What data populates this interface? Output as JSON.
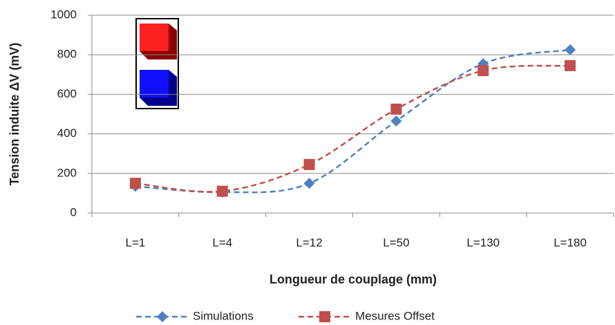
{
  "chart_data": {
    "type": "line",
    "smooth": true,
    "grid": true,
    "legend": "bottom",
    "x_label": "Longueur de couplage (mm)",
    "y_label": "Tension induite ΔV (mV)",
    "categories": [
      "L=1",
      "L=4",
      "L=12",
      "L=50",
      "L=130",
      "L=180"
    ],
    "series": [
      {
        "name": "Simulations",
        "color": "#4f81bd",
        "marker": "diamond",
        "values": [
          135,
          105,
          150,
          465,
          755,
          825
        ]
      },
      {
        "name": "Mesures Offset",
        "color": "#c0504d",
        "marker": "square",
        "values": [
          150,
          110,
          245,
          525,
          720,
          745
        ]
      }
    ],
    "ylim": [
      0,
      1000
    ],
    "yticks": [
      0,
      200,
      400,
      600,
      800,
      1000
    ]
  }
}
